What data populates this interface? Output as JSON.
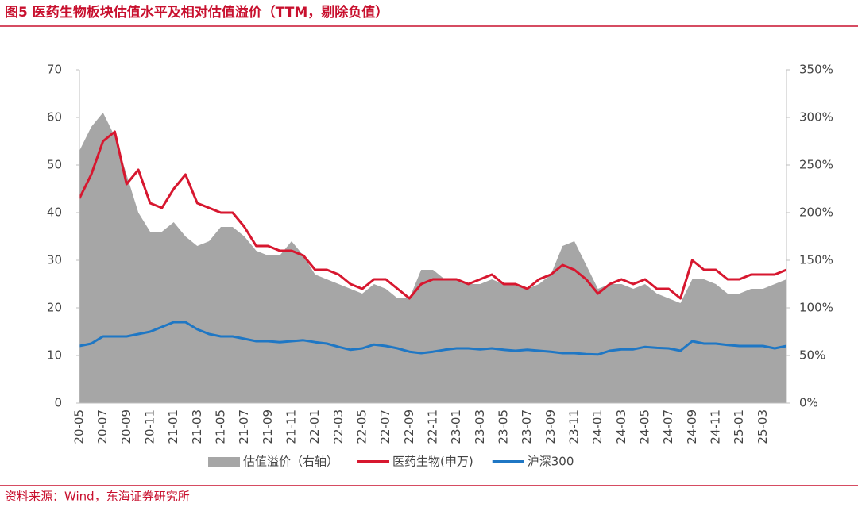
{
  "chart_data": {
    "type": "line",
    "title": "图5  医药生物板块估值水平及相对估值溢价（TTM，剔除负值）",
    "source": "资料来源：Wind，东海证券研究所",
    "categories": [
      "20-05",
      null,
      "20-07",
      null,
      "20-09",
      null,
      "20-11",
      null,
      "21-01",
      null,
      "21-03",
      null,
      "21-05",
      null,
      "21-07",
      null,
      "21-09",
      null,
      "21-11",
      null,
      "22-01",
      null,
      "22-03",
      null,
      "22-05",
      null,
      "22-07",
      null,
      "22-09",
      null,
      "22-11",
      null,
      "23-01",
      null,
      "23-03",
      null,
      "23-05",
      null,
      "23-07",
      null,
      "23-09",
      null,
      "23-11",
      null,
      "24-01",
      null,
      "24-03",
      null,
      "24-05",
      null,
      "24-07",
      null,
      "24-09",
      null,
      "24-11",
      null,
      "25-01",
      null,
      "25-03",
      null,
      null
    ],
    "series": [
      {
        "name": "估值溢价（右轴）",
        "color": "#a6a6a6",
        "axis": "y2",
        "kind": "area",
        "values": [
          265,
          290,
          305,
          280,
          240,
          200,
          180,
          180,
          190,
          175,
          165,
          170,
          185,
          185,
          175,
          160,
          155,
          155,
          170,
          155,
          135,
          130,
          125,
          120,
          115,
          125,
          120,
          110,
          110,
          140,
          140,
          130,
          130,
          125,
          125,
          130,
          125,
          125,
          120,
          125,
          135,
          165,
          170,
          145,
          120,
          125,
          125,
          120,
          125,
          115,
          110,
          105,
          130,
          130,
          125,
          115,
          115,
          120,
          120,
          125,
          130
        ]
      },
      {
        "name": "医药生物(申万)",
        "color": "#d7172f",
        "values": [
          43,
          48,
          55,
          57,
          46,
          49,
          42,
          41,
          45,
          48,
          42,
          41,
          40,
          40,
          37,
          33,
          33,
          32,
          32,
          31,
          28,
          28,
          27,
          25,
          24,
          26,
          26,
          24,
          22,
          25,
          26,
          26,
          26,
          25,
          26,
          27,
          25,
          25,
          24,
          26,
          27,
          29,
          28,
          26,
          23,
          25,
          26,
          25,
          26,
          24,
          24,
          22,
          30,
          28,
          28,
          26,
          26,
          27,
          27,
          27,
          28
        ]
      },
      {
        "name": "沪深300",
        "color": "#1f77c4",
        "values": [
          12,
          12.5,
          14,
          14,
          14,
          14.5,
          15,
          16,
          17,
          17,
          15.5,
          14.5,
          14,
          14,
          13.5,
          13,
          13,
          12.8,
          13,
          13.2,
          12.8,
          12.5,
          11.8,
          11.2,
          11.5,
          12.3,
          12,
          11.5,
          10.8,
          10.5,
          10.8,
          11.2,
          11.5,
          11.5,
          11.3,
          11.5,
          11.2,
          11,
          11.2,
          11,
          10.8,
          10.5,
          10.5,
          10.3,
          10.2,
          11,
          11.3,
          11.3,
          11.8,
          11.6,
          11.5,
          11,
          13,
          12.5,
          12.5,
          12.2,
          12,
          12,
          12,
          11.5,
          12
        ]
      }
    ],
    "ylim": [
      0,
      70
    ],
    "yticks": [
      0,
      10,
      20,
      30,
      40,
      50,
      60,
      70
    ],
    "y2lim": [
      0,
      350
    ],
    "y2ticks": [
      {
        "value": 0,
        "label": "0%"
      },
      {
        "value": 50,
        "label": "50%"
      },
      {
        "value": 100,
        "label": "100%"
      },
      {
        "value": 150,
        "label": "150%"
      },
      {
        "value": 200,
        "label": "200%"
      },
      {
        "value": 250,
        "label": "250%"
      },
      {
        "value": 300,
        "label": "300%"
      },
      {
        "value": 350,
        "label": "350%"
      }
    ]
  }
}
